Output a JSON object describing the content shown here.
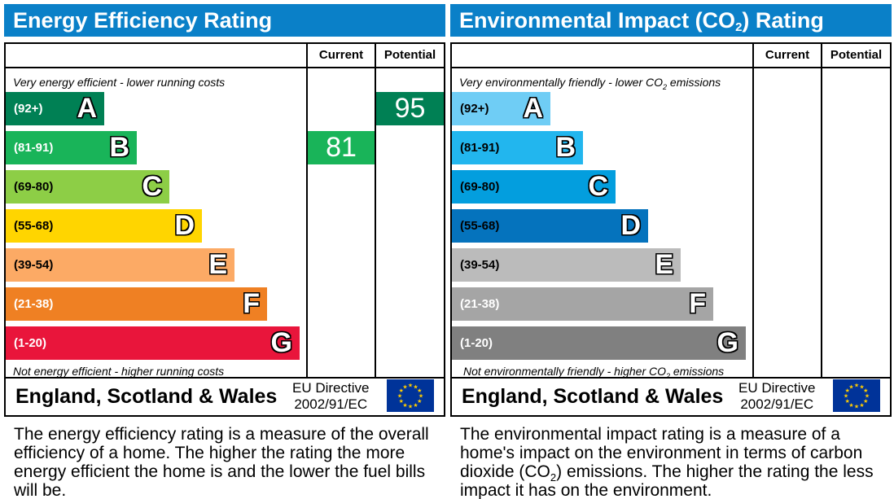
{
  "energy_efficiency": {
    "title": "Energy Efficiency Rating",
    "col_current": "Current",
    "col_potential": "Potential",
    "top_note": "Very energy efficient - lower running costs",
    "bottom_note": "Not energy efficient - higher running costs",
    "bands": [
      {
        "range": "(92+)",
        "letter": "A",
        "color": "#008054"
      },
      {
        "range": "(81-91)",
        "letter": "B",
        "color": "#19b459"
      },
      {
        "range": "(69-80)",
        "letter": "C",
        "color": "#8dce46"
      },
      {
        "range": "(55-68)",
        "letter": "D",
        "color": "#ffd500"
      },
      {
        "range": "(39-54)",
        "letter": "E",
        "color": "#fcaa65"
      },
      {
        "range": "(21-38)",
        "letter": "F",
        "color": "#ef8023"
      },
      {
        "range": "(1-20)",
        "letter": "G",
        "color": "#e9153b"
      }
    ],
    "current": {
      "value": "81",
      "band": "B",
      "color": "#19b459"
    },
    "potential": {
      "value": "95",
      "band": "A",
      "color": "#008054"
    },
    "region": "England, Scotland & Wales",
    "directive_line1": "EU Directive",
    "directive_line2": "2002/91/EC",
    "description": "The energy efficiency rating is a measure of the overall efficiency of a home. The higher the rating the more energy efficient the home is and the lower the fuel bills will be."
  },
  "environmental_impact": {
    "title_pre": "Environmental Impact (CO",
    "title_sub": "2",
    "title_post": ") Rating",
    "col_current": "Current",
    "col_potential": "Potential",
    "top_note_pre": "Very environmentally friendly - lower CO",
    "top_note_sub": "2",
    "top_note_post": " emissions",
    "bottom_note_pre": "Not environmentally friendly - higher CO",
    "bottom_note_sub": "2",
    "bottom_note_post": " emissions",
    "bands": [
      {
        "range": "(92+)",
        "letter": "A",
        "color": "#6fcdf5"
      },
      {
        "range": "(81-91)",
        "letter": "B",
        "color": "#22b6ee"
      },
      {
        "range": "(69-80)",
        "letter": "C",
        "color": "#039ede"
      },
      {
        "range": "(55-68)",
        "letter": "D",
        "color": "#0573bd"
      },
      {
        "range": "(39-54)",
        "letter": "E",
        "color": "#bbbbbb"
      },
      {
        "range": "(21-38)",
        "letter": "F",
        "color": "#a5a5a5"
      },
      {
        "range": "(1-20)",
        "letter": "G",
        "color": "#808080"
      }
    ],
    "region": "England, Scotland & Wales",
    "directive_line1": "EU Directive",
    "directive_line2": "2002/91/EC",
    "description_pre": "The environmental impact rating is a measure of a home's impact on the environment in terms of carbon dioxide (CO",
    "description_sub": "2",
    "description_post": ") emissions. The higher the rating the less impact it has on the environment."
  },
  "colors": {
    "header_blue": "#0a80c8",
    "eu_flag_blue": "#003399",
    "eu_star_yellow": "#ffcc00"
  },
  "chart_data": [
    {
      "type": "bar",
      "title": "Energy Efficiency Rating",
      "categories": [
        "A",
        "B",
        "C",
        "D",
        "E",
        "F",
        "G"
      ],
      "ranges": [
        "(92+)",
        "(81-91)",
        "(69-80)",
        "(55-68)",
        "(39-54)",
        "(21-38)",
        "(1-20)"
      ],
      "current": 81,
      "potential": 95
    },
    {
      "type": "bar",
      "title": "Environmental Impact (CO2) Rating",
      "categories": [
        "A",
        "B",
        "C",
        "D",
        "E",
        "F",
        "G"
      ],
      "ranges": [
        "(92+)",
        "(81-91)",
        "(69-80)",
        "(55-68)",
        "(39-54)",
        "(21-38)",
        "(1-20)"
      ],
      "current": null,
      "potential": null
    }
  ]
}
